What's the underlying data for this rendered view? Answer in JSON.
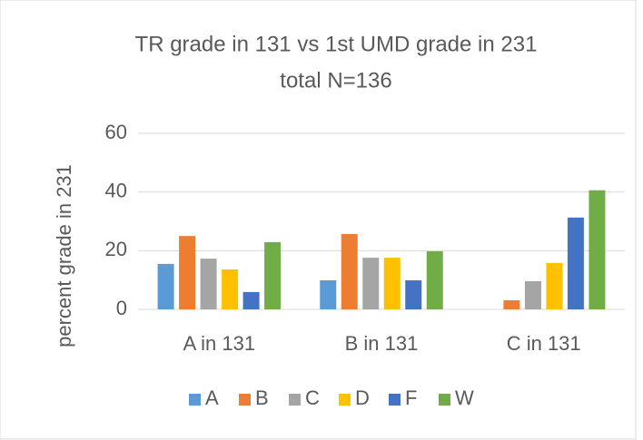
{
  "chart_data": {
    "type": "bar",
    "title": "TR grade in 131 vs 1st UMD grade in 231",
    "subtitle": "total N=136",
    "y_label": "percent grade in 231",
    "categories": [
      "A in 131",
      "B in 131",
      "C in 131"
    ],
    "series": [
      {
        "name": "A",
        "color": "#5b9bd5",
        "values": [
          15.5,
          9.9,
          0
        ]
      },
      {
        "name": "B",
        "color": "#ed7d31",
        "values": [
          25,
          25.7,
          3.1
        ]
      },
      {
        "name": "C",
        "color": "#a5a5a5",
        "values": [
          17.3,
          17.6,
          9.6
        ]
      },
      {
        "name": "D",
        "color": "#ffc000",
        "values": [
          13.6,
          17.6,
          15.8
        ]
      },
      {
        "name": "F",
        "color": "#4472c4",
        "values": [
          5.9,
          9.9,
          31.3
        ]
      },
      {
        "name": "W",
        "color": "#70ad47",
        "values": [
          22.9,
          19.8,
          40.6
        ]
      }
    ],
    "ylim": [
      0,
      60
    ],
    "yticks": [
      0,
      20,
      40,
      60
    ],
    "grid": true,
    "legend": "bottom"
  }
}
